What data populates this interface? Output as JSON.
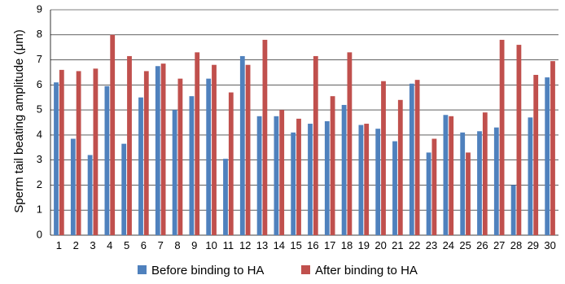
{
  "chart_data": {
    "type": "bar",
    "title": "",
    "xlabel": "",
    "ylabel": "Sperm tail beating amplitude (μm)",
    "ylim": [
      0,
      9
    ],
    "yticks": [
      0,
      1,
      2,
      3,
      4,
      5,
      6,
      7,
      8,
      9
    ],
    "grid": true,
    "legend_position": "bottom",
    "categories": [
      "1",
      "2",
      "3",
      "4",
      "5",
      "6",
      "7",
      "8",
      "9",
      "10",
      "11",
      "12",
      "13",
      "14",
      "15",
      "16",
      "17",
      "18",
      "19",
      "20",
      "21",
      "22",
      "23",
      "24",
      "25",
      "26",
      "27",
      "28",
      "29",
      "30"
    ],
    "series": [
      {
        "name": "Before binding to HA",
        "color": "#4F81BD",
        "values": [
          6.1,
          3.85,
          3.2,
          5.95,
          3.65,
          5.5,
          6.75,
          5.0,
          5.55,
          6.25,
          3.05,
          7.15,
          4.75,
          4.75,
          4.1,
          4.45,
          4.55,
          5.2,
          4.4,
          4.25,
          3.75,
          6.05,
          3.3,
          4.8,
          4.1,
          4.15,
          4.3,
          2.0,
          4.7,
          6.3
        ]
      },
      {
        "name": "After binding to HA",
        "color": "#C0504D",
        "values": [
          6.6,
          6.55,
          6.65,
          8.0,
          7.15,
          6.55,
          6.85,
          6.25,
          7.3,
          6.8,
          5.7,
          6.8,
          7.8,
          5.0,
          4.65,
          7.15,
          5.55,
          7.3,
          4.45,
          6.15,
          5.4,
          6.2,
          3.85,
          4.75,
          3.3,
          4.9,
          7.8,
          7.6,
          6.4,
          6.95
        ]
      }
    ]
  }
}
